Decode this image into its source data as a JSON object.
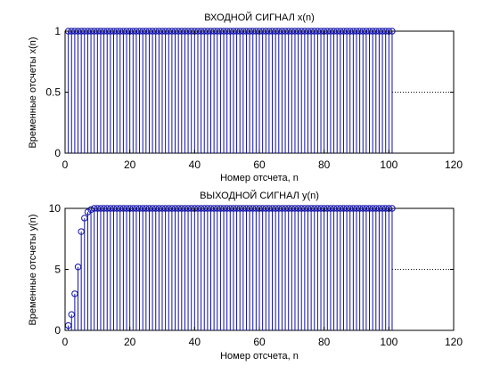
{
  "chart_data": [
    {
      "type": "stem",
      "title": "ВХОДНОЙ СИГНАЛ x(n)",
      "xlabel": "Номер отсчета, n",
      "ylabel": "Временные отсчеты x(n)",
      "xlim": [
        0,
        120
      ],
      "ylim": [
        0,
        1
      ],
      "xticks": [
        "0",
        "20",
        "40",
        "60",
        "80",
        "100",
        "120"
      ],
      "yticks": [
        "0",
        "0.5",
        "1"
      ],
      "dotted_line_y": 0.5,
      "color": "#1010a8",
      "marker": "o",
      "x_start": 1,
      "x_end": 101,
      "values": [
        1,
        1,
        1,
        1,
        1,
        1,
        1,
        1,
        1,
        1,
        1,
        1,
        1,
        1,
        1,
        1,
        1,
        1,
        1,
        1,
        1,
        1,
        1,
        1,
        1,
        1,
        1,
        1,
        1,
        1,
        1,
        1,
        1,
        1,
        1,
        1,
        1,
        1,
        1,
        1,
        1,
        1,
        1,
        1,
        1,
        1,
        1,
        1,
        1,
        1,
        1,
        1,
        1,
        1,
        1,
        1,
        1,
        1,
        1,
        1,
        1,
        1,
        1,
        1,
        1,
        1,
        1,
        1,
        1,
        1,
        1,
        1,
        1,
        1,
        1,
        1,
        1,
        1,
        1,
        1,
        1,
        1,
        1,
        1,
        1,
        1,
        1,
        1,
        1,
        1,
        1,
        1,
        1,
        1,
        1,
        1,
        1,
        1,
        1,
        1,
        1
      ]
    },
    {
      "type": "stem",
      "title": "ВЫХОДНОЙ СИГНАЛ y(n)",
      "xlabel": "Номер отсчета, n",
      "ylabel": "Временные отсчеты y(n)",
      "xlim": [
        0,
        120
      ],
      "ylim": [
        0,
        10
      ],
      "xticks": [
        "0",
        "20",
        "40",
        "60",
        "80",
        "100",
        "120"
      ],
      "yticks": [
        "0",
        "5",
        "10"
      ],
      "dotted_line_y": 5,
      "color": "#1010a8",
      "marker": "o",
      "x_start": 1,
      "x_end": 101,
      "values": [
        0.4,
        1.3,
        3.0,
        5.2,
        8.1,
        9.2,
        9.7,
        9.9,
        10,
        10,
        10,
        10,
        10,
        10,
        10,
        10,
        10,
        10,
        10,
        10,
        10,
        10,
        10,
        10,
        10,
        10,
        10,
        10,
        10,
        10,
        10,
        10,
        10,
        10,
        10,
        10,
        10,
        10,
        10,
        10,
        10,
        10,
        10,
        10,
        10,
        10,
        10,
        10,
        10,
        10,
        10,
        10,
        10,
        10,
        10,
        10,
        10,
        10,
        10,
        10,
        10,
        10,
        10,
        10,
        10,
        10,
        10,
        10,
        10,
        10,
        10,
        10,
        10,
        10,
        10,
        10,
        10,
        10,
        10,
        10,
        10,
        10,
        10,
        10,
        10,
        10,
        10,
        10,
        10,
        10,
        10,
        10,
        10,
        10,
        10,
        10,
        10,
        10,
        10,
        10,
        10
      ]
    }
  ]
}
